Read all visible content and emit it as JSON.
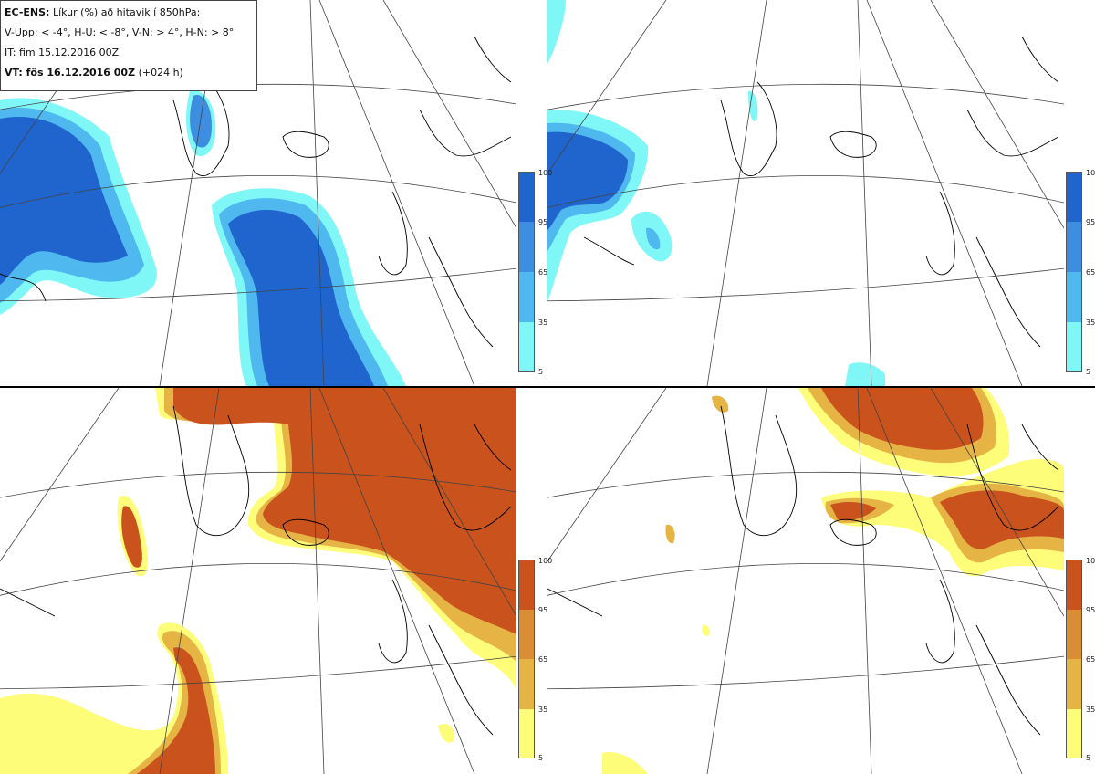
{
  "header": {
    "model": "EC-ENS:",
    "title": "Líkur (%) að hitavik í 850hPa:",
    "thresholds": "V-Upp: < -4°, H-U: < -8°, V-N: > 4°, H-N: > 8°",
    "init_time": "IT: fim 15.12.2016 00Z",
    "valid_label": "VT: fös 16.12.2016 00Z",
    "lead": "(+024 h)"
  },
  "legend_ticks": [
    "100",
    "95",
    "65",
    "35",
    "5"
  ],
  "colors": {
    "cold": [
      "#7ff7f7",
      "#5ee6f2",
      "#4fb8ee",
      "#3d8ee0",
      "#1f65cd"
    ],
    "warm": [
      "#fdfd7a",
      "#f5dd5b",
      "#e6b345",
      "#d98e36",
      "#c9521d"
    ]
  },
  "panels": [
    {
      "name": "top-left",
      "variable": "cold anomaly < -4°"
    },
    {
      "name": "top-right",
      "variable": "cold anomaly < -8°"
    },
    {
      "name": "bottom-left",
      "variable": "warm anomaly > 4°"
    },
    {
      "name": "bottom-right",
      "variable": "warm anomaly > 8°"
    }
  ]
}
